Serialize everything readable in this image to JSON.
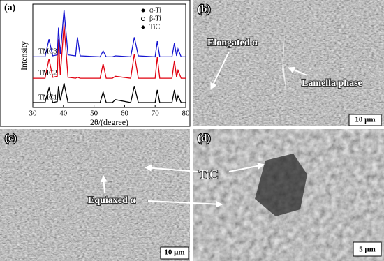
{
  "chart_data": {
    "type": "line",
    "panel_label": "(a)",
    "x_label": "2θ/(degree)",
    "y_label": "Intensity",
    "x": [
      30,
      34,
      35.3,
      36.5,
      38,
      38.4,
      39,
      40.2,
      41.5,
      44,
      44.6,
      45.5,
      52,
      53,
      54,
      56,
      57,
      62,
      63.2,
      64.5,
      70,
      70.7,
      71.5,
      75.5,
      76.3,
      77,
      77.5,
      78.5,
      80
    ],
    "series": [
      {
        "name": "TMC1",
        "color": "#000000",
        "values": [
          5,
          5,
          20,
          5,
          6,
          22,
          7,
          25,
          5,
          5,
          5,
          5,
          5,
          16,
          5,
          5,
          8,
          5,
          22,
          5,
          5,
          18,
          5,
          5,
          18,
          6,
          12,
          5,
          5
        ]
      },
      {
        "name": "TMC2",
        "color": "#e0000f",
        "values": [
          30,
          30,
          50,
          31,
          32,
          70,
          33,
          85,
          31,
          30,
          31,
          30,
          30,
          45,
          30,
          30,
          32,
          30,
          55,
          30,
          30,
          52,
          30,
          30,
          48,
          31,
          38,
          30,
          30
        ]
      },
      {
        "name": "TMC3",
        "color": "#1515d0",
        "values": [
          52,
          52,
          70,
          53,
          54,
          82,
          55,
          100,
          54,
          53,
          72,
          53,
          52,
          58,
          52,
          52,
          53,
          52,
          72,
          53,
          52,
          68,
          52,
          52,
          66,
          53,
          60,
          52,
          52
        ]
      }
    ],
    "phase_legend": [
      "α-Ti",
      "β-Ti",
      "TiC"
    ],
    "xlim": [
      30,
      80
    ],
    "xticks": [
      30,
      40,
      50,
      60,
      70,
      80
    ],
    "ylim": [
      0,
      106
    ]
  },
  "micrographs": [
    {
      "label": "(b)",
      "annotations": [
        "Elongated α",
        "Lamella phase"
      ],
      "scale_bar": "10 μm"
    },
    {
      "label": "(c)",
      "scale_bar": "10 μm"
    },
    {
      "label": "(d)",
      "scale_bar": "5 μm"
    }
  ],
  "shared_annotations": [
    "TiC",
    "Equiaxed α"
  ]
}
